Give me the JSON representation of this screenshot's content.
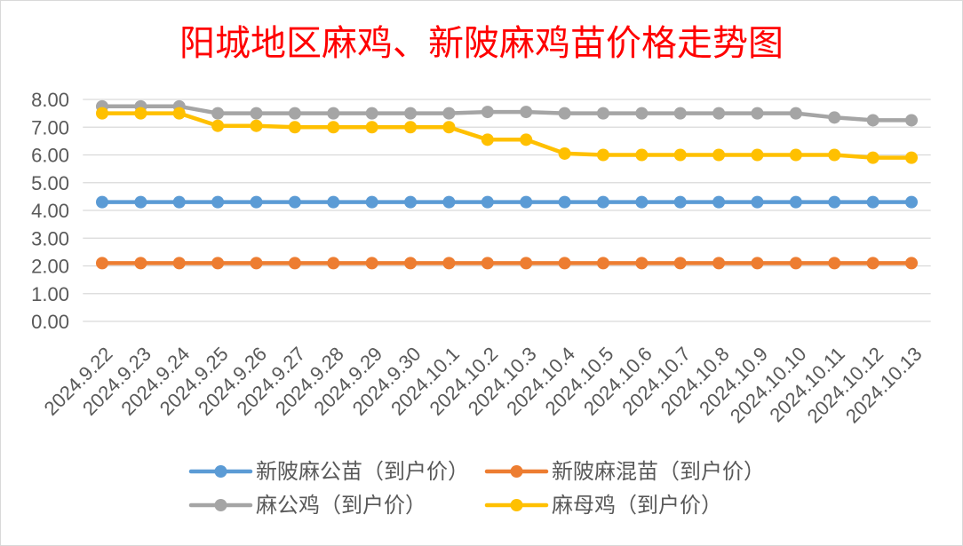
{
  "chart_data": {
    "type": "line",
    "title": "阳城地区麻鸡、新陂麻鸡苗价格走势图",
    "title_color": "#FF0000",
    "categories": [
      "2024.9.22",
      "2024.9.23",
      "2024.9.24",
      "2024.9.25",
      "2024.9.26",
      "2024.9.27",
      "2024.9.28",
      "2024.9.29",
      "2024.9.30",
      "2024.10.1",
      "2024.10.2",
      "2024.10.3",
      "2024.10.4",
      "2024.10.5",
      "2024.10.6",
      "2024.10.7",
      "2024.10.8",
      "2024.10.9",
      "2024.10.10",
      "2024.10.11",
      "2024.10.12",
      "2024.10.13"
    ],
    "ylim": [
      0,
      8
    ],
    "yticks": [
      0,
      1,
      2,
      3,
      4,
      5,
      6,
      7,
      8
    ],
    "ytick_labels": [
      "0.00",
      "1.00",
      "2.00",
      "3.00",
      "4.00",
      "5.00",
      "6.00",
      "7.00",
      "8.00"
    ],
    "grid": true,
    "legend": "bottom",
    "series": [
      {
        "name": "新陂麻公苗（到户价）",
        "color": "#5B9BD5",
        "values": [
          4.3,
          4.3,
          4.3,
          4.3,
          4.3,
          4.3,
          4.3,
          4.3,
          4.3,
          4.3,
          4.3,
          4.3,
          4.3,
          4.3,
          4.3,
          4.3,
          4.3,
          4.3,
          4.3,
          4.3,
          4.3,
          4.3
        ]
      },
      {
        "name": "新陂麻混苗（到户价）",
        "color": "#ED7D31",
        "values": [
          2.1,
          2.1,
          2.1,
          2.1,
          2.1,
          2.1,
          2.1,
          2.1,
          2.1,
          2.1,
          2.1,
          2.1,
          2.1,
          2.1,
          2.1,
          2.1,
          2.1,
          2.1,
          2.1,
          2.1,
          2.1,
          2.1
        ]
      },
      {
        "name": "麻公鸡（到户价）",
        "color": "#A5A5A5",
        "values": [
          7.75,
          7.75,
          7.75,
          7.5,
          7.5,
          7.5,
          7.5,
          7.5,
          7.5,
          7.5,
          7.55,
          7.55,
          7.5,
          7.5,
          7.5,
          7.5,
          7.5,
          7.5,
          7.5,
          7.35,
          7.25,
          7.25
        ]
      },
      {
        "name": "麻母鸡（到户价）",
        "color": "#FFC000",
        "values": [
          7.5,
          7.5,
          7.5,
          7.05,
          7.05,
          7.0,
          7.0,
          7.0,
          7.0,
          7.0,
          6.55,
          6.55,
          6.05,
          6.0,
          6.0,
          6.0,
          6.0,
          6.0,
          6.0,
          6.0,
          5.9,
          5.9
        ]
      }
    ]
  }
}
